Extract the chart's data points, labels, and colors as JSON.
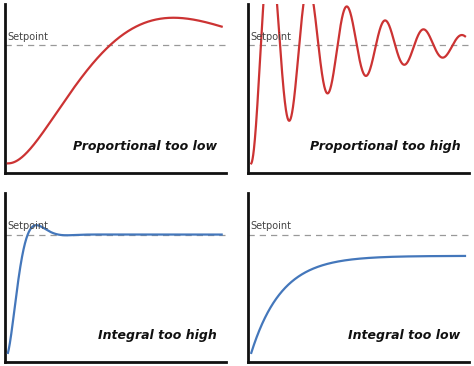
{
  "background_color": "#ffffff",
  "line_color_red": "#cc3333",
  "line_color_blue": "#4477bb",
  "setpoint_color": "#999999",
  "setpoint_label": "Setpoint",
  "label_top_left": "Proportional too low",
  "label_top_right": "Proportional too high",
  "label_bot_left": "Integral too high",
  "label_bot_right": "Integral too low",
  "label_fontsize": 9,
  "setpoint_fontsize": 7,
  "axis_color": "#111111",
  "fig_width": 4.74,
  "fig_height": 3.66,
  "dpi": 100
}
